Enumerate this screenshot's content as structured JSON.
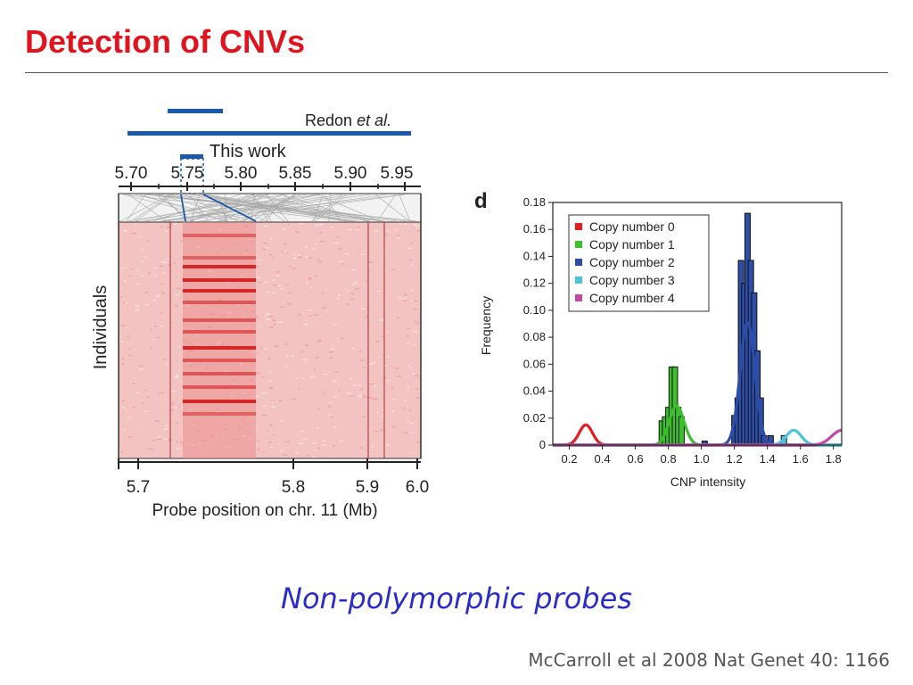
{
  "slide": {
    "title": "Detection of CNVs",
    "subtitle": "Non-polymorphic probes",
    "citation": "McCarroll et al 2008 Nat Genet 40: 1166"
  },
  "heatmap_panel": {
    "redon_label": "Redon",
    "redon_label_italic": "et al.",
    "this_work_label": "This work",
    "top_ticks": [
      "5.70",
      "5.75",
      "5.80",
      "5.85",
      "5.90",
      "5.95"
    ],
    "bottom_ticks": [
      "5.7",
      "5.8",
      "5.9",
      "6.0"
    ],
    "ylabel": "Individuals",
    "xlabel": "Probe position on chr. 11 (Mb)",
    "colors": {
      "heat_bg": "#f3c3c1",
      "heat_dark": "#d42020",
      "bar_blue": "#1a5aa8"
    }
  },
  "chart_data": {
    "type": "bar",
    "panel_label": "d",
    "xlabel": "CNP intensity",
    "ylabel": "Frequency",
    "xlim": [
      0.1,
      1.85
    ],
    "ylim": [
      0,
      0.18
    ],
    "x_ticks": [
      "0.2",
      "0.4",
      "0.6",
      "0.8",
      "1.0",
      "1.2",
      "1.4",
      "1.6",
      "1.8"
    ],
    "y_ticks": [
      "0",
      "0.02",
      "0.04",
      "0.06",
      "0.08",
      "0.10",
      "0.12",
      "0.14",
      "0.16",
      "0.18"
    ],
    "legend_position": "top-left",
    "series": [
      {
        "name": "Copy number 0",
        "color": "#e02020",
        "mu": 0.3,
        "peak": 0.015,
        "sigma": 0.04
      },
      {
        "name": "Copy number 1",
        "color": "#3cbf2c",
        "mu": 0.85,
        "peak": 0.029,
        "sigma": 0.045
      },
      {
        "name": "Copy number 2",
        "color": "#2c4da8",
        "mu": 1.28,
        "peak": 0.091,
        "sigma": 0.045
      },
      {
        "name": "Copy number 3",
        "color": "#4cc4dc",
        "mu": 1.56,
        "peak": 0.011,
        "sigma": 0.045
      },
      {
        "name": "Copy number 4",
        "color": "#c04aa8",
        "mu": 1.85,
        "peak": 0.011,
        "sigma": 0.06
      }
    ],
    "histogram": [
      {
        "x": 0.76,
        "y": 0.018,
        "color": "#3cbf2c"
      },
      {
        "x": 0.78,
        "y": 0.021,
        "color": "#3cbf2c"
      },
      {
        "x": 0.8,
        "y": 0.028,
        "color": "#3cbf2c"
      },
      {
        "x": 0.82,
        "y": 0.058,
        "color": "#3cbf2c"
      },
      {
        "x": 0.84,
        "y": 0.058,
        "color": "#3cbf2c"
      },
      {
        "x": 0.86,
        "y": 0.028,
        "color": "#3cbf2c"
      },
      {
        "x": 0.88,
        "y": 0.021,
        "color": "#3cbf2c"
      },
      {
        "x": 1.02,
        "y": 0.003,
        "color": "#2c4da8"
      },
      {
        "x": 1.2,
        "y": 0.022,
        "color": "#2c4da8"
      },
      {
        "x": 1.22,
        "y": 0.035,
        "color": "#2c4da8"
      },
      {
        "x": 1.24,
        "y": 0.137,
        "color": "#2c4da8"
      },
      {
        "x": 1.26,
        "y": 0.12,
        "color": "#2c4da8"
      },
      {
        "x": 1.28,
        "y": 0.172,
        "color": "#2c4da8"
      },
      {
        "x": 1.3,
        "y": 0.137,
        "color": "#2c4da8"
      },
      {
        "x": 1.32,
        "y": 0.113,
        "color": "#2c4da8"
      },
      {
        "x": 1.34,
        "y": 0.07,
        "color": "#2c4da8"
      },
      {
        "x": 1.36,
        "y": 0.035,
        "color": "#2c4da8"
      },
      {
        "x": 1.38,
        "y": 0.007,
        "color": "#2c4da8"
      },
      {
        "x": 1.42,
        "y": 0.007,
        "color": "#2c4da8"
      },
      {
        "x": 1.5,
        "y": 0.007,
        "color": "#4cc4dc"
      }
    ]
  }
}
